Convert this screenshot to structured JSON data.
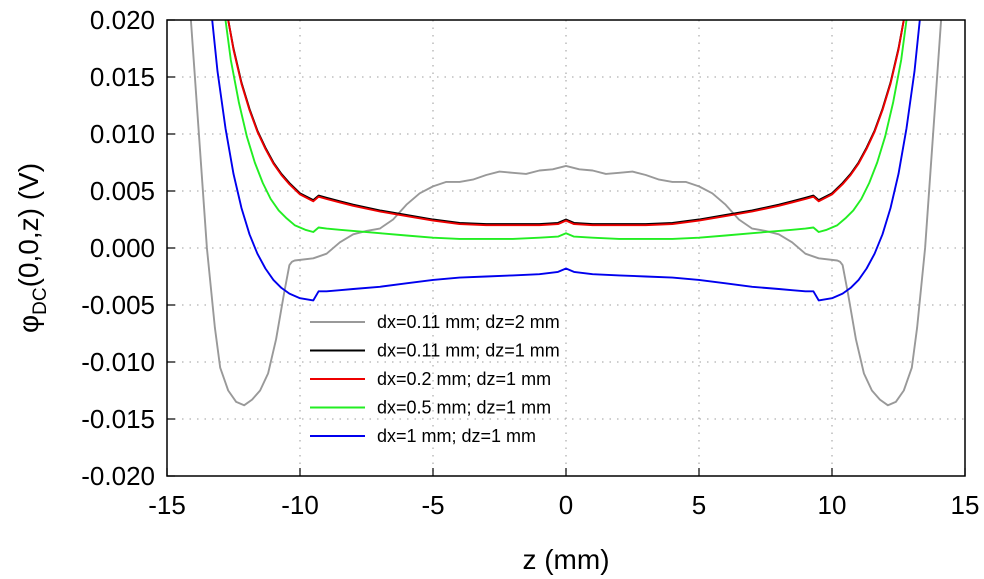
{
  "chart_data": {
    "type": "line",
    "title": "",
    "xlabel": "z (mm)",
    "ylabel": {
      "main": "φ",
      "sub": "DC",
      "rest": "(0,0,z)  (V)"
    },
    "xlim": [
      -15,
      15
    ],
    "ylim": [
      -0.02,
      0.02
    ],
    "x_ticks": [
      "-15",
      "-10",
      "-5",
      "0",
      "5",
      "10",
      "15"
    ],
    "x_tick_values": [
      -15,
      -10,
      -5,
      0,
      5,
      10,
      15
    ],
    "y_ticks": [
      "0.020",
      "0.015",
      "0.010",
      "0.005",
      "0.000",
      "-0.005",
      "-0.010",
      "-0.015",
      "-0.020"
    ],
    "y_tick_values": [
      0.02,
      0.015,
      0.01,
      0.005,
      0.0,
      -0.005,
      -0.01,
      -0.015,
      -0.02
    ],
    "grid": "dotted",
    "legend_position": "center-left",
    "series": [
      {
        "name": "dx=0.11 mm; dz=2 mm",
        "color": "#999999",
        "x": [
          -14.1,
          -13.8,
          -13.5,
          -13.2,
          -13.0,
          -12.7,
          -12.4,
          -12.1,
          -11.8,
          -11.5,
          -11.2,
          -10.9,
          -10.6,
          -10.4,
          -10.3,
          -10.2,
          -9.5,
          -9.0,
          -8.5,
          -8.0,
          -7.5,
          -7.0,
          -6.5,
          -6.0,
          -5.5,
          -5.0,
          -4.5,
          -4.0,
          -3.5,
          -3.0,
          -2.5,
          -2.0,
          -1.5,
          -1.0,
          -0.5,
          0.0,
          0.5,
          1.0,
          1.5,
          2.0,
          2.5,
          3.0,
          3.5,
          4.0,
          4.5,
          5.0,
          5.5,
          6.0,
          6.5,
          7.0,
          7.5,
          8.0,
          8.5,
          9.0,
          9.5,
          10.2,
          10.3,
          10.4,
          10.6,
          10.9,
          11.2,
          11.5,
          11.8,
          12.1,
          12.4,
          12.7,
          13.0,
          13.2,
          13.5,
          13.8,
          14.1
        ],
        "y": [
          0.02,
          0.01,
          0.0,
          -0.007,
          -0.0105,
          -0.0125,
          -0.0135,
          -0.0138,
          -0.0133,
          -0.0125,
          -0.011,
          -0.008,
          -0.004,
          -0.0015,
          -0.0012,
          -0.0011,
          -0.0009,
          -0.0005,
          0.0005,
          0.0012,
          0.0015,
          0.0017,
          0.0025,
          0.0038,
          0.0048,
          0.0054,
          0.0058,
          0.0058,
          0.006,
          0.0064,
          0.0067,
          0.0066,
          0.0065,
          0.0068,
          0.0069,
          0.0072,
          0.0069,
          0.0068,
          0.0065,
          0.0066,
          0.0067,
          0.0064,
          0.006,
          0.0058,
          0.0058,
          0.0054,
          0.0048,
          0.0038,
          0.0025,
          0.0017,
          0.0015,
          0.0012,
          0.0005,
          -0.0005,
          -0.0009,
          -0.0011,
          -0.0012,
          -0.0015,
          -0.004,
          -0.008,
          -0.011,
          -0.0125,
          -0.0133,
          -0.0138,
          -0.0135,
          -0.0125,
          -0.0105,
          -0.007,
          0.0,
          0.01,
          0.02
        ]
      },
      {
        "name": "dx=0.11 mm; dz=1 mm",
        "color": "#000000",
        "x": [
          -12.7,
          -12.5,
          -12.2,
          -11.9,
          -11.6,
          -11.3,
          -11.0,
          -10.7,
          -10.4,
          -10.0,
          -9.5,
          -9.3,
          -9.0,
          -8.5,
          -8.0,
          -7.0,
          -6.0,
          -5.0,
          -4.0,
          -3.0,
          -2.0,
          -1.0,
          -0.3,
          0.0,
          0.3,
          1.0,
          2.0,
          3.0,
          4.0,
          5.0,
          6.0,
          7.0,
          8.0,
          8.5,
          9.0,
          9.3,
          9.5,
          10.0,
          10.4,
          10.7,
          11.0,
          11.3,
          11.6,
          11.9,
          12.2,
          12.5,
          12.7
        ],
        "y": [
          0.02,
          0.0175,
          0.0145,
          0.0122,
          0.0103,
          0.0088,
          0.0075,
          0.0065,
          0.0057,
          0.0048,
          0.0042,
          0.0046,
          0.0044,
          0.0041,
          0.0038,
          0.0033,
          0.0029,
          0.0025,
          0.0022,
          0.0021,
          0.0021,
          0.0021,
          0.0022,
          0.0025,
          0.0022,
          0.0021,
          0.0021,
          0.0021,
          0.0022,
          0.0025,
          0.0029,
          0.0033,
          0.0038,
          0.0041,
          0.0044,
          0.0046,
          0.0042,
          0.0048,
          0.0057,
          0.0065,
          0.0075,
          0.0088,
          0.0103,
          0.0122,
          0.0145,
          0.0175,
          0.02
        ]
      },
      {
        "name": "dx=0.2 mm; dz=1 mm",
        "color": "#ee0000",
        "x": [
          -12.7,
          -12.5,
          -12.2,
          -11.9,
          -11.6,
          -11.3,
          -11.0,
          -10.7,
          -10.4,
          -10.0,
          -9.5,
          -9.3,
          -9.0,
          -8.5,
          -8.0,
          -7.0,
          -6.0,
          -5.0,
          -4.0,
          -3.0,
          -2.0,
          -1.0,
          -0.3,
          0.0,
          0.3,
          1.0,
          2.0,
          3.0,
          4.0,
          5.0,
          6.0,
          7.0,
          8.0,
          8.5,
          9.0,
          9.3,
          9.5,
          10.0,
          10.4,
          10.7,
          11.0,
          11.3,
          11.6,
          11.9,
          12.2,
          12.5,
          12.7
        ],
        "y": [
          0.02,
          0.0174,
          0.0144,
          0.0121,
          0.0102,
          0.0087,
          0.0074,
          0.0064,
          0.0056,
          0.0047,
          0.0041,
          0.0045,
          0.0043,
          0.004,
          0.0037,
          0.0032,
          0.0028,
          0.0024,
          0.0021,
          0.002,
          0.002,
          0.002,
          0.0021,
          0.0024,
          0.0021,
          0.002,
          0.002,
          0.002,
          0.0021,
          0.0024,
          0.0028,
          0.0032,
          0.0037,
          0.004,
          0.0043,
          0.0045,
          0.0041,
          0.0047,
          0.0056,
          0.0064,
          0.0074,
          0.0087,
          0.0102,
          0.0121,
          0.0144,
          0.0174,
          0.02
        ]
      },
      {
        "name": "dx=0.5 mm; dz=1 mm",
        "color": "#22ee22",
        "x": [
          -12.8,
          -12.6,
          -12.3,
          -12.0,
          -11.7,
          -11.4,
          -11.1,
          -10.8,
          -10.5,
          -10.2,
          -9.8,
          -9.5,
          -9.3,
          -9.0,
          -8.5,
          -8.0,
          -7.0,
          -6.0,
          -5.0,
          -4.0,
          -3.0,
          -2.0,
          -1.0,
          -0.3,
          0.0,
          0.3,
          1.0,
          2.0,
          3.0,
          4.0,
          5.0,
          6.0,
          7.0,
          8.0,
          8.5,
          9.0,
          9.3,
          9.5,
          9.8,
          10.2,
          10.5,
          10.8,
          11.1,
          11.4,
          11.7,
          12.0,
          12.3,
          12.6,
          12.8
        ],
        "y": [
          0.02,
          0.0165,
          0.0128,
          0.0098,
          0.0075,
          0.0057,
          0.0043,
          0.0033,
          0.0026,
          0.002,
          0.0016,
          0.0014,
          0.0018,
          0.0017,
          0.0016,
          0.0015,
          0.0013,
          0.0011,
          0.0009,
          0.0008,
          0.0008,
          0.0008,
          0.0009,
          0.001,
          0.0013,
          0.001,
          0.0009,
          0.0008,
          0.0008,
          0.0008,
          0.0009,
          0.0011,
          0.0013,
          0.0015,
          0.0016,
          0.0017,
          0.0018,
          0.0014,
          0.0016,
          0.002,
          0.0026,
          0.0033,
          0.0043,
          0.0057,
          0.0075,
          0.0098,
          0.0128,
          0.0165,
          0.02
        ]
      },
      {
        "name": "dx=1 mm; dz=1 mm",
        "color": "#0000ee",
        "x": [
          -13.3,
          -13.1,
          -12.8,
          -12.5,
          -12.2,
          -11.9,
          -11.6,
          -11.3,
          -11.0,
          -10.7,
          -10.4,
          -10.0,
          -9.5,
          -9.3,
          -9.0,
          -8.5,
          -8.0,
          -7.0,
          -6.0,
          -5.0,
          -4.0,
          -3.0,
          -2.0,
          -1.0,
          -0.3,
          0.0,
          0.3,
          1.0,
          2.0,
          3.0,
          4.0,
          5.0,
          6.0,
          7.0,
          8.0,
          8.5,
          9.0,
          9.3,
          9.5,
          10.0,
          10.4,
          10.7,
          11.0,
          11.3,
          11.6,
          11.9,
          12.2,
          12.5,
          12.8,
          13.1,
          13.3
        ],
        "y": [
          0.02,
          0.0155,
          0.0105,
          0.0065,
          0.0035,
          0.0012,
          -0.0005,
          -0.0018,
          -0.0028,
          -0.0035,
          -0.004,
          -0.0044,
          -0.0046,
          -0.0038,
          -0.0038,
          -0.0037,
          -0.0036,
          -0.0034,
          -0.0031,
          -0.0028,
          -0.0026,
          -0.0025,
          -0.0024,
          -0.0023,
          -0.0021,
          -0.0018,
          -0.0021,
          -0.0023,
          -0.0024,
          -0.0025,
          -0.0026,
          -0.0028,
          -0.0031,
          -0.0034,
          -0.0036,
          -0.0037,
          -0.0038,
          -0.0038,
          -0.0046,
          -0.0044,
          -0.004,
          -0.0035,
          -0.0028,
          -0.0018,
          -0.0005,
          0.0012,
          0.0035,
          0.0065,
          0.0105,
          0.0155,
          0.02
        ]
      }
    ]
  }
}
